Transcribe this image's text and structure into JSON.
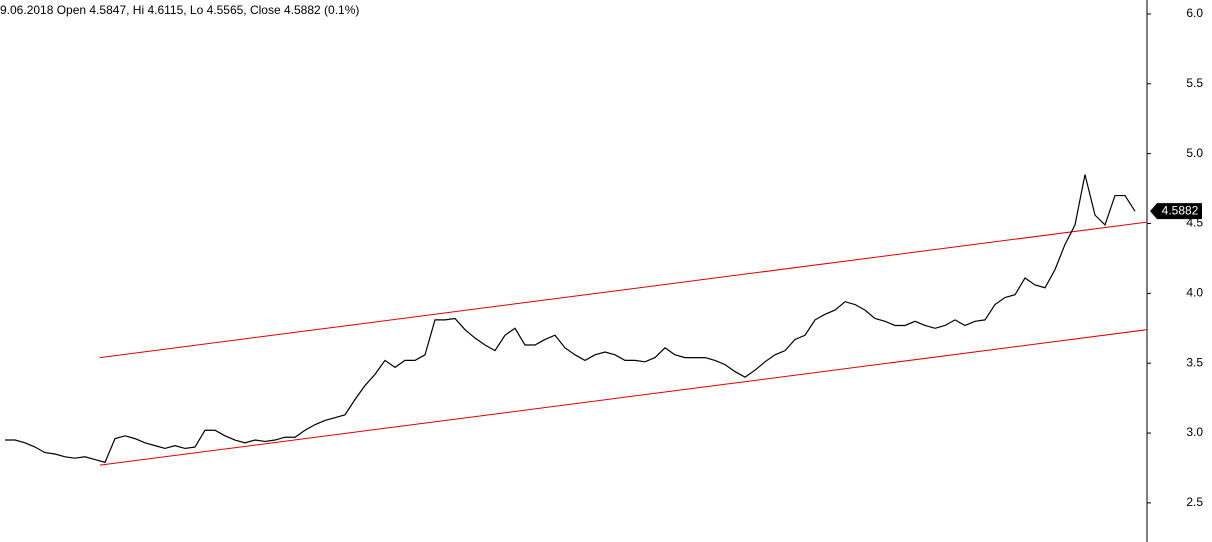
{
  "chart_data": {
    "type": "line",
    "title": "9.06.2018 Open 4.5847, Hi 4.6115, Lo 4.5565, Close 4.5882 (0.1%)",
    "color": "#000000",
    "values": [
      2.95,
      2.95,
      2.93,
      2.9,
      2.86,
      2.85,
      2.83,
      2.82,
      2.83,
      2.81,
      2.79,
      2.96,
      2.98,
      2.96,
      2.93,
      2.91,
      2.89,
      2.91,
      2.89,
      2.9,
      3.02,
      3.02,
      2.98,
      2.95,
      2.93,
      2.95,
      2.94,
      2.95,
      2.97,
      2.97,
      3.02,
      3.06,
      3.09,
      3.11,
      3.13,
      3.24,
      3.34,
      3.42,
      3.52,
      3.47,
      3.52,
      3.52,
      3.56,
      3.81,
      3.81,
      3.82,
      3.74,
      3.68,
      3.63,
      3.59,
      3.7,
      3.75,
      3.63,
      3.63,
      3.67,
      3.7,
      3.61,
      3.56,
      3.52,
      3.56,
      3.58,
      3.56,
      3.52,
      3.52,
      3.51,
      3.54,
      3.61,
      3.56,
      3.54,
      3.54,
      3.54,
      3.52,
      3.49,
      3.44,
      3.4,
      3.45,
      3.51,
      3.56,
      3.59,
      3.67,
      3.7,
      3.81,
      3.85,
      3.88,
      3.94,
      3.92,
      3.88,
      3.82,
      3.8,
      3.77,
      3.77,
      3.8,
      3.77,
      3.75,
      3.77,
      3.81,
      3.77,
      3.8,
      3.81,
      3.92,
      3.97,
      3.99,
      4.11,
      4.06,
      4.04,
      4.17,
      4.35,
      4.49,
      4.85,
      4.56,
      4.49,
      4.7,
      4.7,
      4.5882
    ],
    "last_value": 4.5882,
    "xlim": [
      0,
      114.7
    ],
    "ylim": [
      2.22,
      6.1
    ],
    "yticks": [
      2.5,
      {
        "value": 3,
        "label": "3.0"
      },
      3.5,
      {
        "value": 4,
        "label": "4.0"
      },
      4.5,
      {
        "value": 5,
        "label": "5.0"
      },
      5.5,
      {
        "value": 6,
        "label": "6.0"
      }
    ],
    "trendlines": [
      {
        "color": "#e00000",
        "start": [
          10,
          3.54
        ],
        "end": [
          114.7,
          4.51
        ]
      },
      {
        "color": "#e00000",
        "start": [
          10,
          2.77
        ],
        "end": [
          114.7,
          3.74
        ]
      }
    ]
  }
}
